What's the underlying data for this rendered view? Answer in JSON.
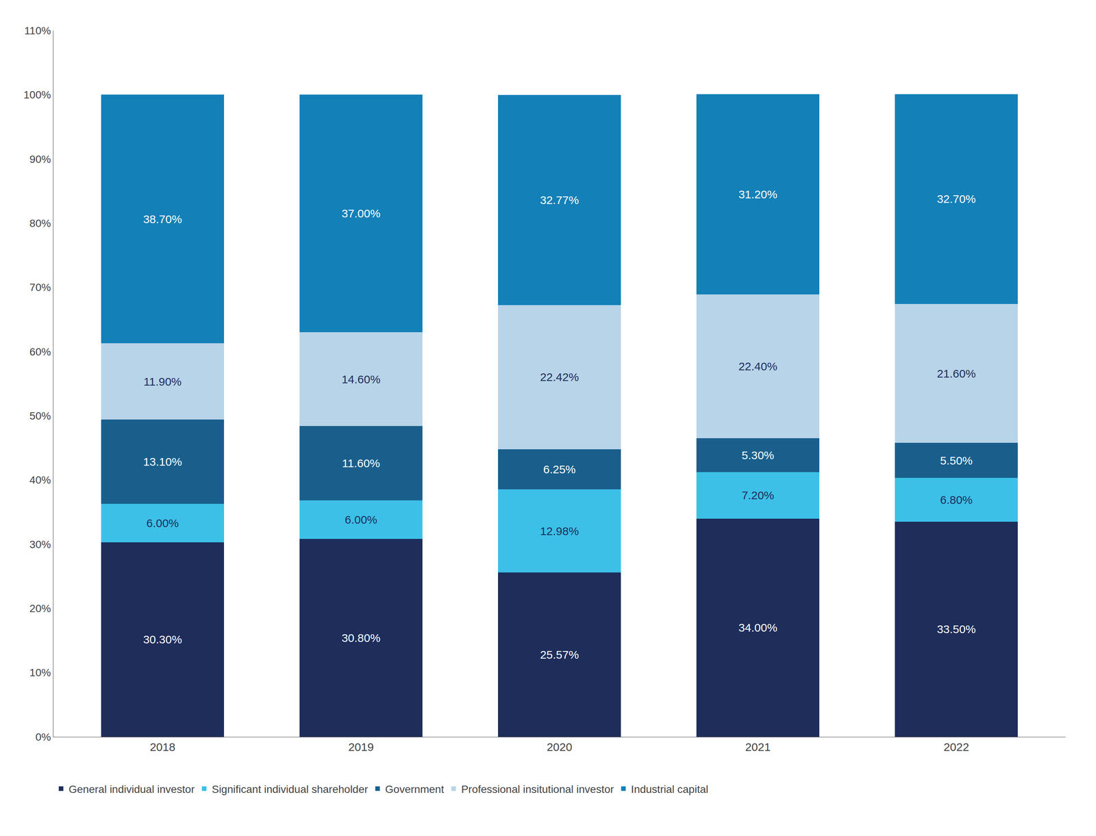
{
  "chart_data": {
    "type": "bar",
    "stacked": true,
    "data_labels": true,
    "grid": false,
    "legend": "lower left",
    "categories": [
      "2018",
      "2019",
      "2020",
      "2021",
      "2022"
    ],
    "series": [
      {
        "name": "General individual investor",
        "color": "#1e2d5a",
        "values": [
          30.3,
          30.8,
          25.57,
          34.0,
          33.5
        ],
        "value_labels": [
          "30.30%",
          "30.80%",
          "25.57%",
          "34.00%",
          "33.50%"
        ]
      },
      {
        "name": "Significant individual shareholder",
        "color": "#3cc0e8",
        "values": [
          6.0,
          6.0,
          12.98,
          7.2,
          6.8
        ],
        "value_labels": [
          "6.00%",
          "6.00%",
          "12.98%",
          "7.20%",
          "6.80%"
        ]
      },
      {
        "name": "Government",
        "color": "#1a5f8c",
        "values": [
          13.1,
          11.6,
          6.25,
          5.3,
          5.5
        ],
        "value_labels": [
          "13.10%",
          "11.60%",
          "6.25%",
          "5.30%",
          "5.50%"
        ]
      },
      {
        "name": "Professional insitutional investor",
        "color": "#b8d4e8",
        "values": [
          11.9,
          14.6,
          22.42,
          22.4,
          21.6
        ],
        "value_labels": [
          "11.90%",
          "14.60%",
          "22.42%",
          "22.40%",
          "21.60%"
        ]
      },
      {
        "name": "Industrial capital",
        "color": "#1480b8",
        "values": [
          38.7,
          37.0,
          32.77,
          31.2,
          32.7
        ],
        "value_labels": [
          "38.70%",
          "37.00%",
          "32.77%",
          "31.20%",
          "32.70%"
        ]
      }
    ],
    "ylim": [
      0,
      110
    ],
    "yticks": [
      {
        "value": 0,
        "label": "0%"
      },
      {
        "value": 10,
        "label": "10%"
      },
      {
        "value": 20,
        "label": "20%"
      },
      {
        "value": 30,
        "label": "30%"
      },
      {
        "value": 40,
        "label": "40%"
      },
      {
        "value": 50,
        "label": "50%"
      },
      {
        "value": 60,
        "label": "60%"
      },
      {
        "value": 70,
        "label": "70%"
      },
      {
        "value": 80,
        "label": "80%"
      },
      {
        "value": 90,
        "label": "90%"
      },
      {
        "value": 100,
        "label": "100%"
      },
      {
        "value": 110,
        "label": "110%"
      }
    ]
  }
}
